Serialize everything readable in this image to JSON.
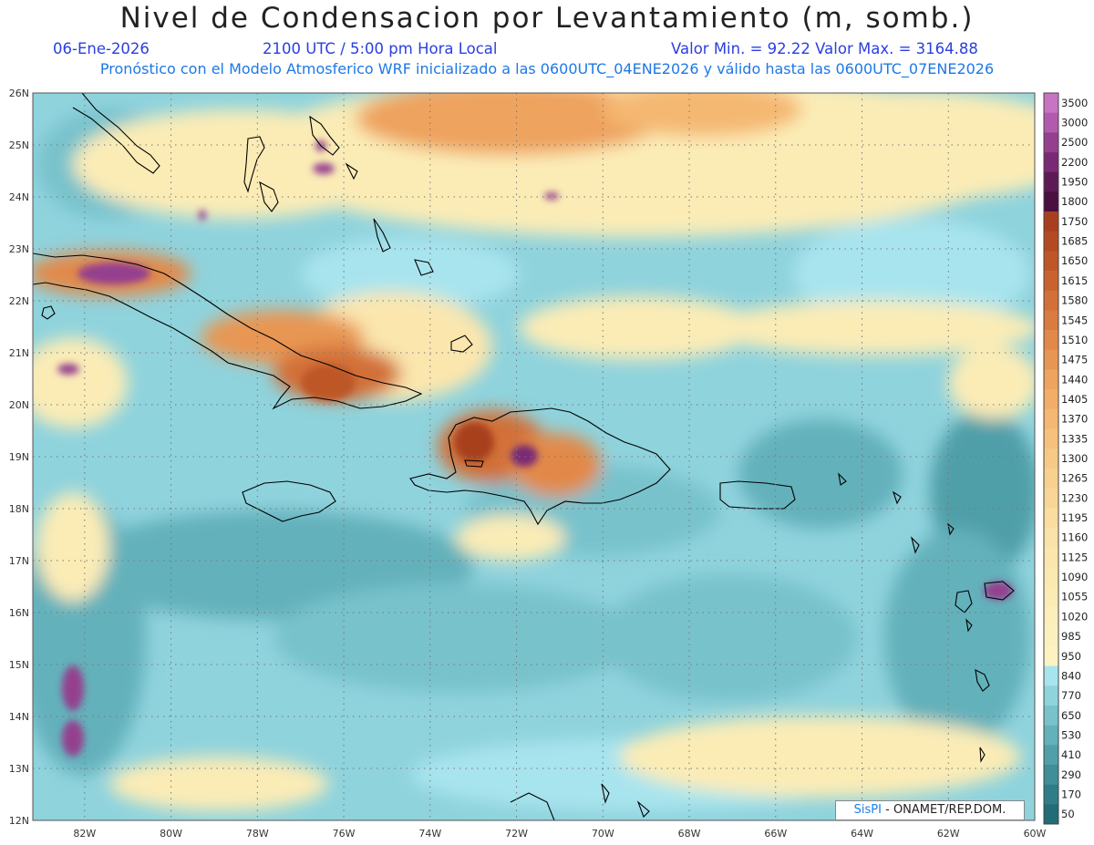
{
  "header": {
    "title": "Nivel de Condensacion por Levantamiento (m, somb.)",
    "date": "06-Ene-2026",
    "time": "2100 UTC / 5:00 pm Hora Local",
    "stats": "Valor Min. = 92.22   Valor Max. = 3164.88",
    "forecast": "Pronóstico con el Modelo Atmosferico WRF inicializado a las 0600UTC_04ENE2026 y válido hasta las  0600UTC_07ENE2026"
  },
  "axes": {
    "lat_labels": [
      "26N",
      "25N",
      "24N",
      "23N",
      "22N",
      "21N",
      "20N",
      "19N",
      "18N",
      "17N",
      "16N",
      "15N",
      "14N",
      "13N",
      "12N"
    ],
    "lon_labels": [
      "82W",
      "80W",
      "78W",
      "76W",
      "74W",
      "72W",
      "70W",
      "68W",
      "66W",
      "64W",
      "62W",
      "60W"
    ],
    "lat_range": [
      12,
      26
    ],
    "lon_range": [
      -83.2,
      -60
    ]
  },
  "colorbar": {
    "levels": [
      "3500",
      "3000",
      "2500",
      "2200",
      "1950",
      "1800",
      "1750",
      "1685",
      "1650",
      "1615",
      "1580",
      "1545",
      "1510",
      "1475",
      "1440",
      "1405",
      "1370",
      "1335",
      "1300",
      "1265",
      "1230",
      "1195",
      "1160",
      "1125",
      "1090",
      "1055",
      "1020",
      "985",
      "950",
      "840",
      "770",
      "650",
      "530",
      "410",
      "290",
      "170",
      "50"
    ],
    "colors": [
      "#c774c2",
      "#b25aae",
      "#94408f",
      "#7a2a74",
      "#5c1b55",
      "#4a1040",
      "#a8401f",
      "#b34a22",
      "#be5628",
      "#c8632f",
      "#d27038",
      "#da7c40",
      "#e2894a",
      "#e89653",
      "#eea35e",
      "#f2ae68",
      "#f4b872",
      "#f6c17c",
      "#f7c986",
      "#f8d08f",
      "#f9d698",
      "#faddA1",
      "#fae2a8",
      "#fbe6ae",
      "#fbe9b2",
      "#fbecb6",
      "#fcefba",
      "#fcf1be",
      "#fdf3c2",
      "#a8e4ee",
      "#8fd3dd",
      "#78c2cc",
      "#63b1bb",
      "#509fa9",
      "#3f8e98",
      "#2f7d88",
      "#216c77"
    ]
  },
  "credit": {
    "brand": "SisPI",
    "org": " - ONAMET/REP.DOM."
  }
}
